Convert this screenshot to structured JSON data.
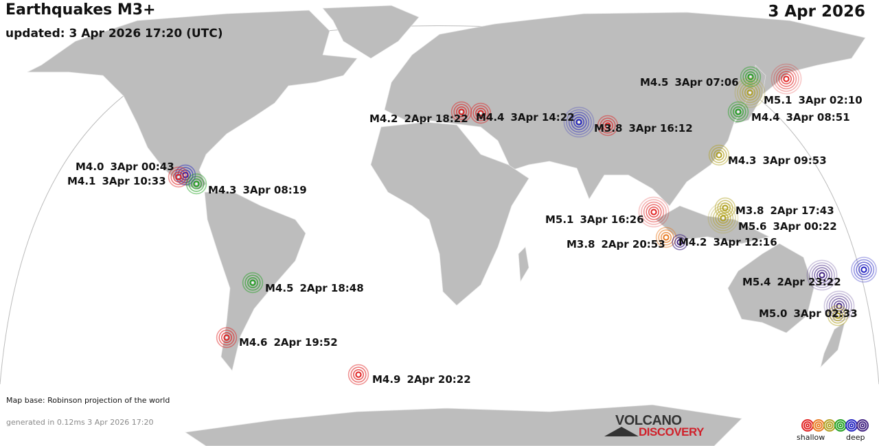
{
  "header": {
    "title": "Earthquakes M3+",
    "updated": "updated:  3 Apr 2026 17:20 (UTC)",
    "date": "3 Apr 2026"
  },
  "footer": {
    "map_base": "Map base: Robinson projection of the world",
    "generated": "generated in 0.12ms  3 Apr 2026 17:20"
  },
  "logo": {
    "line1": "VOLCANO",
    "line2": "DISCOVERY"
  },
  "legend": {
    "shallow": "shallow",
    "deep": "deep",
    "depth_colors": [
      "#e02020",
      "#e87a20",
      "#b0a020",
      "#20a020",
      "#2020c0",
      "#402080"
    ]
  },
  "colors": {
    "land": "#bdbdbd",
    "ocean": "#ffffff",
    "borders": "#e8e8e8"
  },
  "quakes": [
    {
      "mag": "M4.5",
      "time": "3Apr 07:06",
      "depth_color": "#20a020"
    },
    {
      "mag": null,
      "time": null,
      "depth_color": "#e02020"
    },
    {
      "mag": "M5.1",
      "time": "3Apr 02:10",
      "depth_color": "#b0a020"
    },
    {
      "mag": "M4.4",
      "time": "3Apr 08:51",
      "depth_color": "#20a020"
    },
    {
      "mag": "M4.3",
      "time": "3Apr 09:53",
      "depth_color": "#b0a020"
    },
    {
      "mag": "M4.2",
      "time": "2Apr 18:22",
      "depth_color": "#e02020"
    },
    {
      "mag": "M4.4",
      "time": "3Apr 14:22",
      "depth_color": "#e02020"
    },
    {
      "mag": null,
      "time": null,
      "depth_color": "#2020c0"
    },
    {
      "mag": "M3.8",
      "time": "3Apr 16:12",
      "depth_color": "#e02020"
    },
    {
      "mag": "M4.0",
      "time": "3Apr 00:43",
      "depth_color": "#2020c0"
    },
    {
      "mag": "M4.1",
      "time": "3Apr 10:33",
      "depth_color": "#e02020"
    },
    {
      "mag": "M4.3",
      "time": "3Apr 08:19",
      "depth_color": "#20a020"
    },
    {
      "mag": "M5.1",
      "time": "3Apr 16:26",
      "depth_color": "#e02020"
    },
    {
      "mag": "M3.8",
      "time": "2Apr 20:53",
      "depth_color": "#e87a20"
    },
    {
      "mag": "M4.2",
      "time": "3Apr 12:16",
      "depth_color": "#402080"
    },
    {
      "mag": "M3.8",
      "time": "2Apr 17:43",
      "depth_color": "#b0a020"
    },
    {
      "mag": "M5.6",
      "time": "3Apr 00:22",
      "depth_color": "#b0a020"
    },
    {
      "mag": "M5.4",
      "time": "2Apr 23:22",
      "depth_color": "#402080"
    },
    {
      "mag": null,
      "time": null,
      "depth_color": "#2020c0"
    },
    {
      "mag": "M5.0",
      "time": "3Apr 02:33",
      "depth_color": "#402080"
    },
    {
      "mag": null,
      "time": null,
      "depth_color": "#b0a020"
    },
    {
      "mag": "M4.5",
      "time": "2Apr 18:48",
      "depth_color": "#20a020"
    },
    {
      "mag": "M4.6",
      "time": "2Apr 19:52",
      "depth_color": "#e02020"
    },
    {
      "mag": "M4.9",
      "time": "2Apr 20:22",
      "depth_color": "#e02020"
    }
  ]
}
